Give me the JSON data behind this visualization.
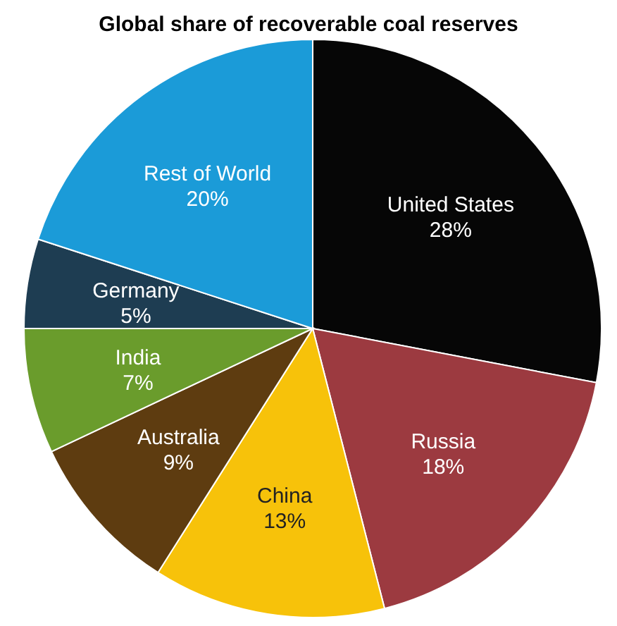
{
  "chart_data": {
    "type": "pie",
    "title": "Global share of recoverable coal reserves",
    "categories": [
      "United States",
      "Russia",
      "China",
      "Australia",
      "India",
      "Germany",
      "Rest of World"
    ],
    "values": [
      28,
      18,
      13,
      9,
      7,
      5,
      20
    ],
    "value_labels": [
      "28%",
      "18%",
      "13%",
      "9%",
      "7%",
      "5%",
      "20%"
    ],
    "colors": [
      "#060606",
      "#9c3a40",
      "#f7c20a",
      "#5e3c10",
      "#6a9c2c",
      "#1e3d52",
      "#1b9bd8"
    ],
    "legend": false
  }
}
